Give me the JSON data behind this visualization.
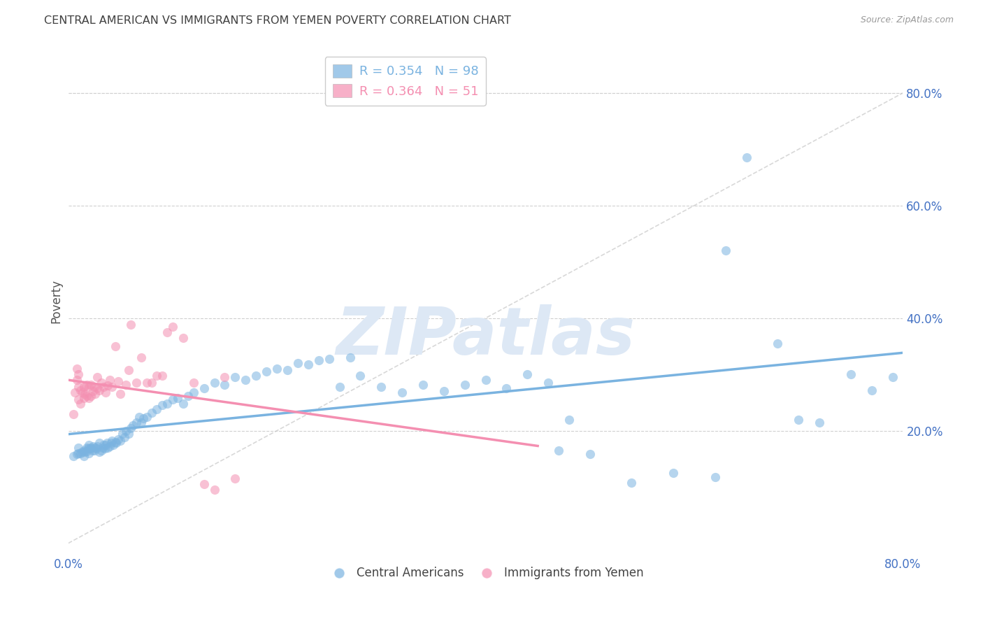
{
  "title": "CENTRAL AMERICAN VS IMMIGRANTS FROM YEMEN POVERTY CORRELATION CHART",
  "source": "Source: ZipAtlas.com",
  "ylabel": "Poverty",
  "blue_color": "#7ab3e0",
  "pink_color": "#f48fb1",
  "diag_color": "#c8c8c8",
  "grid_color": "#d0d0d0",
  "bg_color": "#ffffff",
  "axis_label_color": "#4472c4",
  "title_color": "#404040",
  "watermark": "ZIPatlas",
  "watermark_color": "#dde8f5",
  "xlim": [
    0.0,
    0.8
  ],
  "ylim": [
    -0.02,
    0.88
  ],
  "ytick_values": [
    0.8,
    0.6,
    0.4,
    0.2
  ],
  "blue_x": [
    0.005,
    0.008,
    0.01,
    0.01,
    0.012,
    0.013,
    0.015,
    0.015,
    0.016,
    0.018,
    0.018,
    0.019,
    0.02,
    0.02,
    0.021,
    0.022,
    0.023,
    0.024,
    0.025,
    0.026,
    0.027,
    0.028,
    0.03,
    0.03,
    0.032,
    0.033,
    0.034,
    0.035,
    0.036,
    0.037,
    0.038,
    0.04,
    0.041,
    0.042,
    0.043,
    0.045,
    0.046,
    0.048,
    0.05,
    0.052,
    0.054,
    0.055,
    0.058,
    0.06,
    0.062,
    0.065,
    0.068,
    0.07,
    0.072,
    0.075,
    0.08,
    0.085,
    0.09,
    0.095,
    0.1,
    0.105,
    0.11,
    0.115,
    0.12,
    0.13,
    0.14,
    0.15,
    0.16,
    0.17,
    0.18,
    0.19,
    0.2,
    0.21,
    0.22,
    0.23,
    0.24,
    0.25,
    0.26,
    0.27,
    0.28,
    0.3,
    0.32,
    0.34,
    0.36,
    0.38,
    0.4,
    0.42,
    0.44,
    0.46,
    0.48,
    0.5,
    0.54,
    0.58,
    0.62,
    0.65,
    0.68,
    0.7,
    0.72,
    0.75,
    0.77,
    0.79,
    0.63,
    0.47
  ],
  "blue_y": [
    0.155,
    0.158,
    0.16,
    0.17,
    0.16,
    0.162,
    0.155,
    0.165,
    0.162,
    0.163,
    0.17,
    0.168,
    0.16,
    0.175,
    0.168,
    0.17,
    0.165,
    0.172,
    0.165,
    0.17,
    0.168,
    0.172,
    0.162,
    0.178,
    0.165,
    0.17,
    0.175,
    0.168,
    0.175,
    0.178,
    0.17,
    0.172,
    0.178,
    0.182,
    0.175,
    0.18,
    0.178,
    0.185,
    0.182,
    0.195,
    0.188,
    0.2,
    0.195,
    0.205,
    0.21,
    0.215,
    0.225,
    0.215,
    0.222,
    0.225,
    0.232,
    0.238,
    0.245,
    0.248,
    0.255,
    0.258,
    0.248,
    0.262,
    0.268,
    0.275,
    0.285,
    0.282,
    0.295,
    0.29,
    0.298,
    0.305,
    0.31,
    0.308,
    0.32,
    0.318,
    0.325,
    0.328,
    0.278,
    0.33,
    0.298,
    0.278,
    0.268,
    0.282,
    0.27,
    0.282,
    0.29,
    0.275,
    0.3,
    0.285,
    0.22,
    0.158,
    0.108,
    0.125,
    0.118,
    0.685,
    0.355,
    0.22,
    0.215,
    0.3,
    0.272,
    0.295,
    0.52,
    0.165
  ],
  "pink_x": [
    0.005,
    0.006,
    0.008,
    0.008,
    0.01,
    0.01,
    0.01,
    0.012,
    0.012,
    0.014,
    0.015,
    0.015,
    0.016,
    0.018,
    0.018,
    0.02,
    0.02,
    0.022,
    0.022,
    0.024,
    0.025,
    0.026,
    0.028,
    0.028,
    0.03,
    0.032,
    0.034,
    0.036,
    0.038,
    0.04,
    0.042,
    0.045,
    0.048,
    0.05,
    0.055,
    0.058,
    0.06,
    0.065,
    0.07,
    0.075,
    0.08,
    0.085,
    0.09,
    0.095,
    0.1,
    0.11,
    0.12,
    0.13,
    0.14,
    0.15,
    0.16
  ],
  "pink_y": [
    0.23,
    0.268,
    0.29,
    0.31,
    0.255,
    0.278,
    0.3,
    0.248,
    0.272,
    0.268,
    0.258,
    0.278,
    0.265,
    0.262,
    0.282,
    0.258,
    0.278,
    0.262,
    0.282,
    0.27,
    0.278,
    0.265,
    0.275,
    0.295,
    0.272,
    0.285,
    0.278,
    0.268,
    0.28,
    0.29,
    0.278,
    0.35,
    0.288,
    0.265,
    0.282,
    0.308,
    0.388,
    0.285,
    0.33,
    0.285,
    0.285,
    0.298,
    0.298,
    0.375,
    0.385,
    0.365,
    0.285,
    0.105,
    0.095,
    0.295,
    0.115
  ]
}
